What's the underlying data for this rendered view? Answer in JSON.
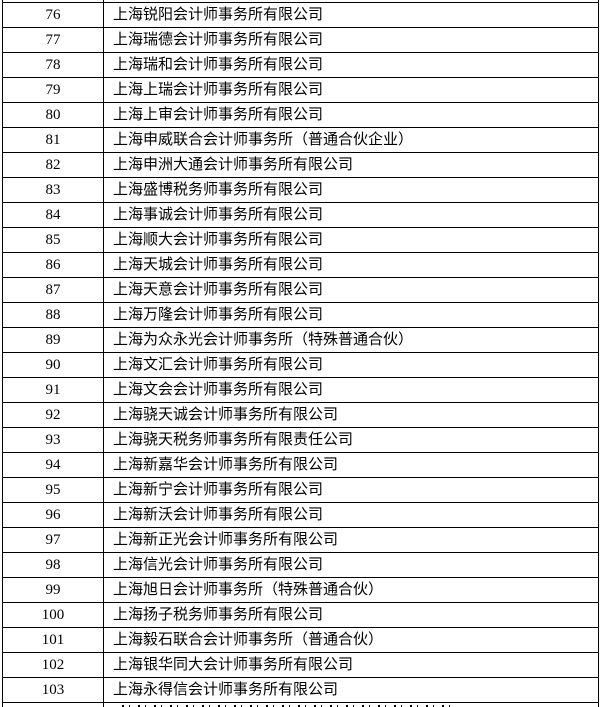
{
  "document": {
    "colors": {
      "border": "#000000",
      "text": "#000000",
      "background": "#ffffff"
    },
    "table": {
      "rows": [
        {
          "no": "76",
          "name": "上海锐阳会计师事务所有限公司"
        },
        {
          "no": "77",
          "name": "上海瑞德会计师事务所有限公司"
        },
        {
          "no": "78",
          "name": "上海瑞和会计师事务所有限公司"
        },
        {
          "no": "79",
          "name": "上海上瑞会计师事务所有限公司"
        },
        {
          "no": "80",
          "name": "上海上审会计师事务所有限公司"
        },
        {
          "no": "81",
          "name": "上海申威联合会计师事务所（普通合伙企业）"
        },
        {
          "no": "82",
          "name": "上海申洲大通会计师事务所有限公司"
        },
        {
          "no": "83",
          "name": "上海盛博税务师事务所有限公司"
        },
        {
          "no": "84",
          "name": "上海事诚会计师事务所有限公司"
        },
        {
          "no": "85",
          "name": "上海顺大会计师事务所有限公司"
        },
        {
          "no": "86",
          "name": "上海天城会计师事务所有限公司"
        },
        {
          "no": "87",
          "name": "上海天意会计师事务所有限公司"
        },
        {
          "no": "88",
          "name": "上海万隆会计师事务所有限公司"
        },
        {
          "no": "89",
          "name": "上海为众永光会计师事务所（特殊普通合伙）"
        },
        {
          "no": "90",
          "name": "上海文汇会计师事务所有限公司"
        },
        {
          "no": "91",
          "name": "上海文会会计师事务所有限公司"
        },
        {
          "no": "92",
          "name": "上海骁天诚会计师事务所有限公司"
        },
        {
          "no": "93",
          "name": "上海骁天税务师事务所有限责任公司"
        },
        {
          "no": "94",
          "name": "上海新嘉华会计师事务所有限公司"
        },
        {
          "no": "95",
          "name": "上海新宁会计师事务所有限公司"
        },
        {
          "no": "96",
          "name": "上海新沃会计师事务所有限公司"
        },
        {
          "no": "97",
          "name": "上海新正光会计师事务所有限公司"
        },
        {
          "no": "98",
          "name": "上海信光会计师事务所有限公司"
        },
        {
          "no": "99",
          "name": "上海旭日会计师事务所（特殊普通合伙）"
        },
        {
          "no": "100",
          "name": "上海扬子税务师事务所有限公司"
        },
        {
          "no": "101",
          "name": "上海毅石联合会计师事务所（普通合伙）"
        },
        {
          "no": "102",
          "name": "上海银华同大会计师事务所有限公司"
        },
        {
          "no": "103",
          "name": "上海永得信会计师事务所有限公司"
        }
      ]
    }
  }
}
